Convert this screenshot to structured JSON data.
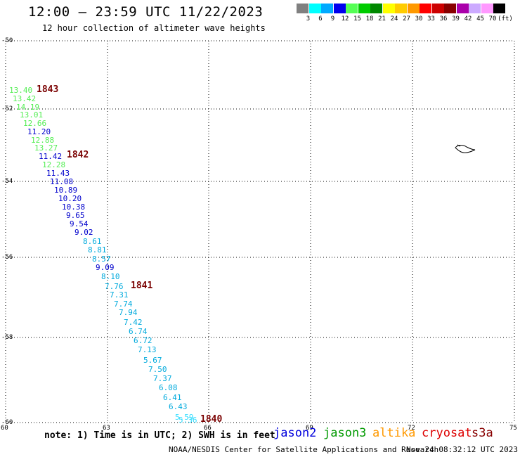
{
  "title": "12:00 — 23:59 UTC 11/22/2023",
  "subtitle": "12 hour collection of altimeter wave heights",
  "colorbar": {
    "unit": "(ft)",
    "items": [
      {
        "label": "3",
        "color": "#808080"
      },
      {
        "label": "6",
        "color": "#00ffff"
      },
      {
        "label": "9",
        "color": "#00aaff"
      },
      {
        "label": "12",
        "color": "#0000ee"
      },
      {
        "label": "15",
        "color": "#55ff55"
      },
      {
        "label": "18",
        "color": "#00cc00"
      },
      {
        "label": "21",
        "color": "#008800"
      },
      {
        "label": "24",
        "color": "#ffff00"
      },
      {
        "label": "27",
        "color": "#ffcc00"
      },
      {
        "label": "30",
        "color": "#ff9900"
      },
      {
        "label": "33",
        "color": "#ff0000"
      },
      {
        "label": "36",
        "color": "#cc0000"
      },
      {
        "label": "39",
        "color": "#880000"
      },
      {
        "label": "42",
        "color": "#aa00aa"
      },
      {
        "label": "45",
        "color": "#ccaaff"
      },
      {
        "label": "70",
        "color": "#ff99ff"
      },
      {
        "label": "",
        "color": "#000000"
      }
    ]
  },
  "axes": {
    "y_labels": [
      "-50",
      "-52",
      "-54",
      "-56",
      "-58",
      "-60"
    ],
    "x_labels": [
      "60",
      "63",
      "66",
      "69",
      "72",
      "75"
    ],
    "grid": "dotted"
  },
  "measurements": [
    {
      "value": "13.40",
      "color": "#55ee55"
    },
    {
      "value": "13.42",
      "color": "#55ee55"
    },
    {
      "value": "14.19",
      "color": "#55ee55"
    },
    {
      "value": "13.01",
      "color": "#55ee55"
    },
    {
      "value": "12.66",
      "color": "#55ee55"
    },
    {
      "value": "11.20",
      "color": "#0000cc"
    },
    {
      "value": "12.88",
      "color": "#55ee55"
    },
    {
      "value": "13.27",
      "color": "#55ee55"
    },
    {
      "value": "11.42",
      "color": "#0000cc"
    },
    {
      "value": "12.28",
      "color": "#55ee55"
    },
    {
      "value": "11.43",
      "color": "#0000cc"
    },
    {
      "value": "11.08",
      "color": "#0000cc"
    },
    {
      "value": "10.89",
      "color": "#0000cc"
    },
    {
      "value": "10.20",
      "color": "#0000cc"
    },
    {
      "value": "10.38",
      "color": "#0000cc"
    },
    {
      "value": "9.65",
      "color": "#0000cc"
    },
    {
      "value": "9.54",
      "color": "#0000cc"
    },
    {
      "value": "9.02",
      "color": "#0000cc"
    },
    {
      "value": "8.61",
      "color": "#00aadd"
    },
    {
      "value": "8.81",
      "color": "#00aadd"
    },
    {
      "value": "8.57",
      "color": "#00aadd"
    },
    {
      "value": "9.09",
      "color": "#0000cc"
    },
    {
      "value": "8.10",
      "color": "#00aadd"
    },
    {
      "value": "7.76",
      "color": "#00aadd"
    },
    {
      "value": "7.31",
      "color": "#00aadd"
    },
    {
      "value": "7.74",
      "color": "#00aadd"
    },
    {
      "value": "7.94",
      "color": "#00aadd"
    },
    {
      "value": "7.42",
      "color": "#00aadd"
    },
    {
      "value": "6.74",
      "color": "#00aadd"
    },
    {
      "value": "6.72",
      "color": "#00aadd"
    },
    {
      "value": "7.13",
      "color": "#00aadd"
    },
    {
      "value": "5.67",
      "color": "#00aadd"
    },
    {
      "value": "7.50",
      "color": "#00aadd"
    },
    {
      "value": "7.37",
      "color": "#00aadd"
    },
    {
      "value": "6.08",
      "color": "#00aadd"
    },
    {
      "value": "6.41",
      "color": "#00aadd"
    },
    {
      "value": "6.43",
      "color": "#00aadd"
    },
    {
      "value": "5.59",
      "color": "#33ddff"
    },
    {
      "value": "5.36",
      "color": "#33ddff"
    }
  ],
  "passes": [
    "1843",
    "1842",
    "1841",
    "1840"
  ],
  "note": "note: 1) Time is in UTC; 2) SWH is in feet",
  "satellites": [
    {
      "name": "jason2",
      "color": "#0000dd"
    },
    {
      "name": "jason3",
      "color": "#009900"
    },
    {
      "name": "altika",
      "color": "#ff9900"
    },
    {
      "name": "cryosat",
      "color": "#dd0000"
    },
    {
      "name": "s3a",
      "color": "#880000"
    }
  ],
  "credit": "NOAA/NESDIS Center for Satellite Applications and Research",
  "timestamp": "Nov 24 08:32:12 UTC 2023"
}
